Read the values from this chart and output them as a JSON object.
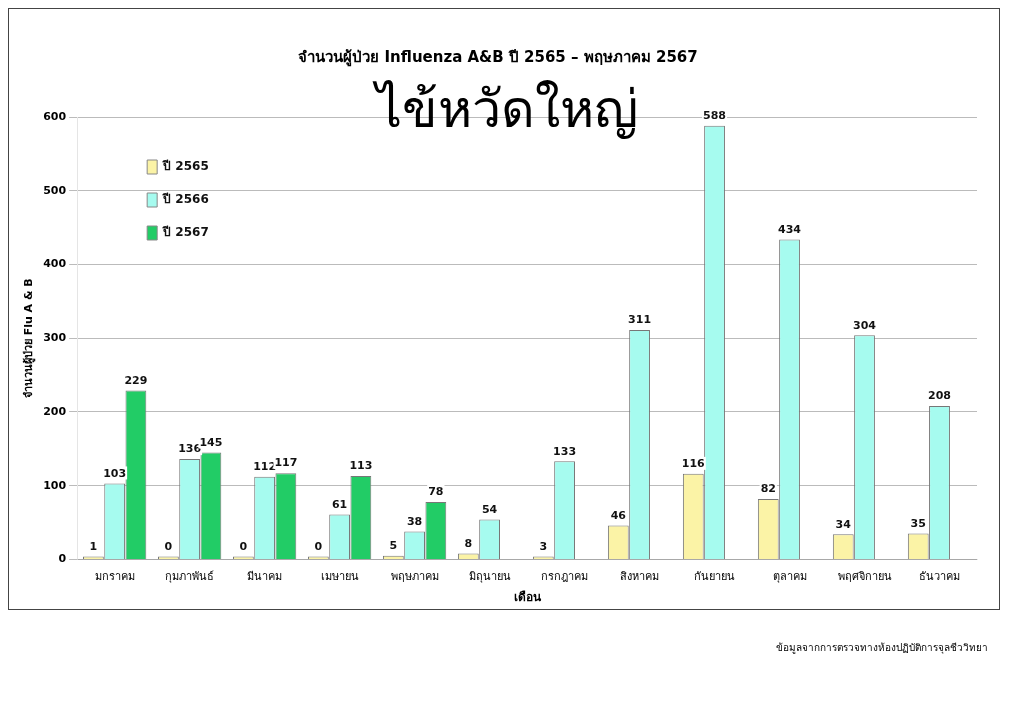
{
  "chart_data": {
    "type": "bar",
    "title": "จำนวนผู้ป่วย Influenza A&B ปี 2565 – พฤษภาคม 2567",
    "xlabel": "เดือน",
    "ylabel": "จำนวนผู้ป่วย Flu A & B",
    "categories": [
      "มกราคม",
      "กุมภาพันธ์",
      "มีนาคม",
      "เมษายน",
      "พฤษภาคม",
      "มิถุนายน",
      "กรกฎาคม",
      "สิงหาคม",
      "กันยายน",
      "ตุลาคม",
      "พฤศจิกายน",
      "ธันวาคม"
    ],
    "series": [
      {
        "name": "ปี 2565",
        "color": "#fbf3a6",
        "values": [
          1,
          0,
          0,
          0,
          5,
          8,
          3,
          46,
          116,
          82,
          34,
          35
        ]
      },
      {
        "name": "ปี 2566",
        "color": "#a6fbef",
        "values": [
          103,
          136,
          112,
          61,
          38,
          54,
          133,
          311,
          588,
          434,
          304,
          208
        ]
      },
      {
        "name": "ปี 2567",
        "color": "#22cc66",
        "values": [
          229,
          145,
          117,
          113,
          78,
          null,
          null,
          null,
          null,
          null,
          null,
          null
        ]
      }
    ],
    "ylim": [
      0,
      600
    ],
    "yticks": [
      0,
      100,
      200,
      300,
      400,
      500,
      600
    ],
    "grid": "y",
    "legend": "top left",
    "data_labels": true,
    "annotations": [
      "ไข้หวัดใหญ่",
      "ข้อมูลจากการตรวจทางห้องปฏิบัติการจุลชีววิทยา"
    ]
  }
}
